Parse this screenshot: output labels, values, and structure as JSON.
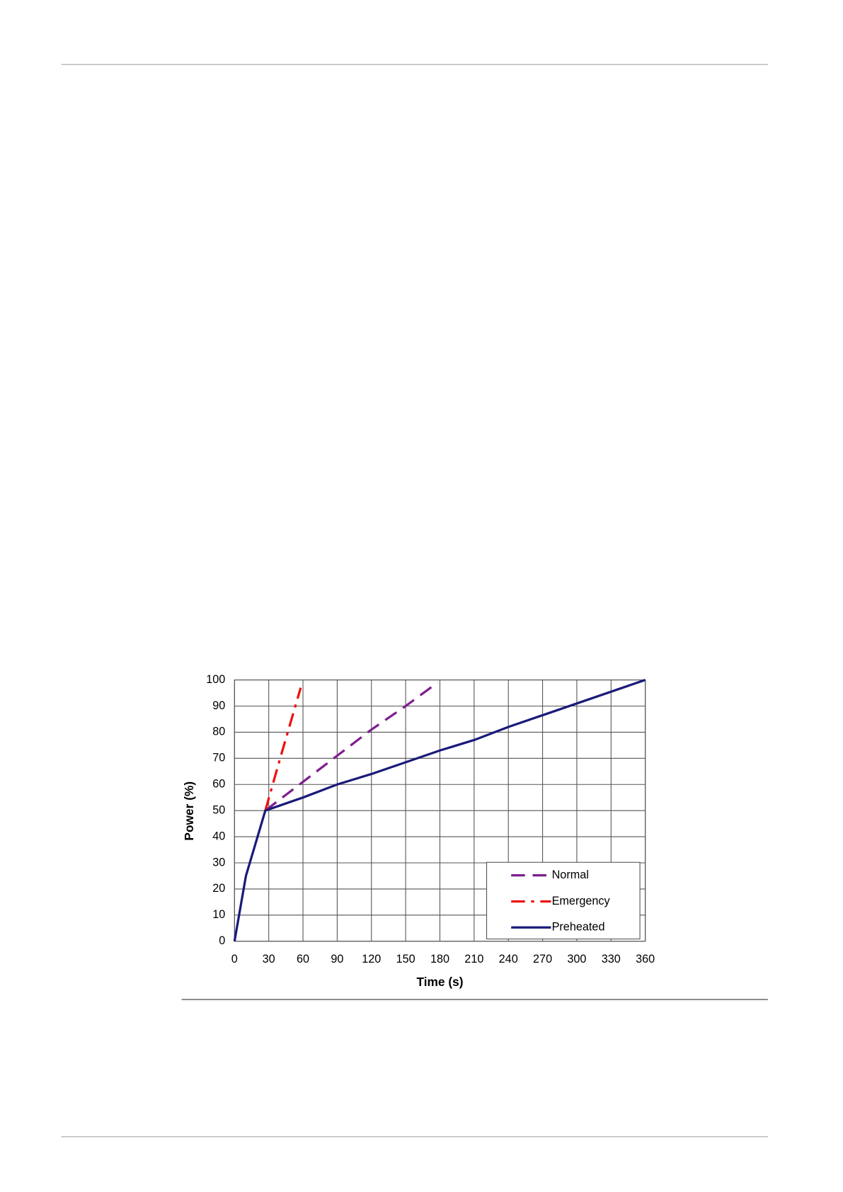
{
  "chart_data": {
    "type": "line",
    "xlabel": "Time (s)",
    "ylabel": "Power (%)",
    "xlim": [
      0,
      360
    ],
    "ylim": [
      0,
      100
    ],
    "xticks": [
      0,
      30,
      60,
      90,
      120,
      150,
      180,
      210,
      240,
      270,
      300,
      330,
      360
    ],
    "yticks": [
      0,
      10,
      20,
      30,
      40,
      50,
      60,
      70,
      80,
      90,
      100
    ],
    "grid": true,
    "legend": "lower right",
    "series": [
      {
        "name": "Normal",
        "color": "#7f1f8f",
        "dash": "dashed",
        "x": [
          27,
          60,
          90,
          120,
          150,
          178
        ],
        "values": [
          50,
          61,
          71,
          81,
          90,
          99
        ]
      },
      {
        "name": "Emergency",
        "color": "#ee1111",
        "dash": "dashdot",
        "x": [
          27,
          40,
          58
        ],
        "values": [
          50,
          70,
          97
        ]
      },
      {
        "name": "Preheated",
        "color": "#1a1a7a",
        "dash": "solid",
        "x": [
          0,
          10,
          27,
          60,
          90,
          120,
          150,
          180,
          210,
          240,
          270,
          300,
          330,
          360
        ],
        "values": [
          0,
          25,
          50,
          55,
          60,
          64,
          68.5,
          73,
          77,
          82,
          86.5,
          91,
          95.5,
          100
        ]
      }
    ]
  }
}
